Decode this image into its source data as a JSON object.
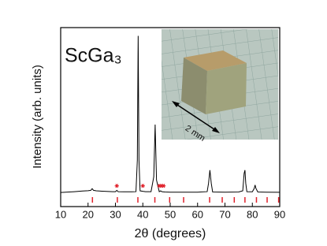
{
  "chart_data": {
    "type": "line",
    "title": "ScGa₃",
    "xlabel": "2θ (degrees)",
    "ylabel": "Intensity (arb. units)",
    "annotation": "2 mm",
    "xlim": [
      10,
      90
    ],
    "xticks": [
      10,
      20,
      30,
      40,
      50,
      60,
      70,
      80,
      90
    ],
    "ylim": [
      -8,
      100
    ],
    "series": [
      {
        "name": "ScGa₃",
        "color": "#000000",
        "x": [
          10,
          15,
          18,
          20,
          21,
          21.5,
          22,
          23,
          26,
          29,
          30,
          30.5,
          31,
          33,
          36,
          37.5,
          38,
          38.3,
          38.6,
          39,
          40,
          41,
          43,
          44,
          44.5,
          45,
          46,
          46.5,
          47,
          48,
          50,
          55,
          60,
          63.5,
          64,
          64.5,
          65,
          65.5,
          70,
          75,
          76.5,
          77,
          77.3,
          77.6,
          78,
          80,
          80.7,
          81,
          81.3,
          82,
          85,
          90
        ],
        "values": [
          0.5,
          1,
          1.4,
          1.6,
          1.8,
          2.8,
          1.8,
          1.5,
          1.2,
          1,
          1,
          1.8,
          1,
          0.9,
          0.9,
          1,
          20,
          95,
          20,
          1.5,
          1.2,
          1,
          1,
          10,
          41.5,
          8,
          1,
          1.5,
          1,
          0.8,
          0.7,
          0.7,
          0.7,
          1,
          6,
          14,
          6,
          0.8,
          0.7,
          0.8,
          1.5,
          12,
          14,
          6,
          1,
          0.9,
          3,
          5,
          3,
          0.8,
          0.7,
          0.6
        ]
      }
    ],
    "impurity_peaks": {
      "color": "#e0202a",
      "x": [
        30.5,
        40,
        46,
        46.8,
        47.6
      ],
      "values": [
        4.5,
        4.5,
        4.5,
        4.5,
        4.5
      ]
    },
    "reflections": {
      "color": "#e0202a",
      "x": [
        21.6,
        30.7,
        38.2,
        44.4,
        49.8,
        54.9,
        64.4,
        69,
        73.4,
        77.3,
        81.5,
        85.4,
        89.6
      ]
    }
  }
}
